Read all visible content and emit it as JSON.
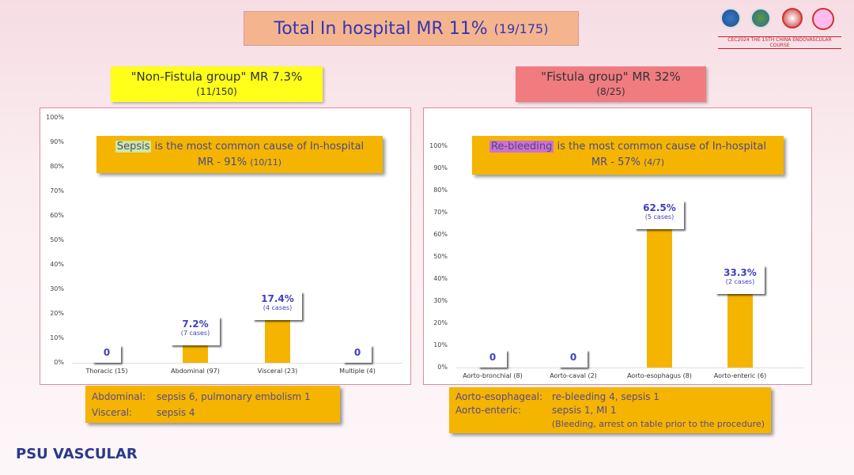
{
  "header": {
    "title": "Total In hospital MR 11%",
    "title_sub": "(19/175)",
    "conference": "CEC2024 THE 15TH CHINA ENDOVASCULAR COURSE"
  },
  "logo": {
    "text": "PSU VASCULAR"
  },
  "left": {
    "title": "\"Non-Fistula group\" MR 7.3%",
    "subtitle": "(11/150)",
    "callout_hl": "Sepsis",
    "callout_rest": " is the most common cause of In-hospital",
    "callout_line2": "MR - 91%",
    "callout_frac": "(10/11)",
    "notes": [
      {
        "k": "Abdominal:",
        "v": "sepsis 6, pulmonary  embolism 1"
      },
      {
        "k": "Visceral:",
        "v": "sepsis 4"
      }
    ]
  },
  "right": {
    "title": "\"Fistula group\" MR 32%",
    "subtitle": "(8/25)",
    "callout_hl": "Re-bleeding",
    "callout_rest": " is the most common cause of In-hospital",
    "callout_line2": "MR - 57%",
    "callout_frac": "(4/7)",
    "notes": [
      {
        "k": "Aorto-esophageal:",
        "v": "re-bleeding 4, sepsis 1"
      },
      {
        "k": "Aorto-enteric:",
        "v": "sepsis 1, MI 1"
      }
    ],
    "note_extra": "(Bleeding, arrest on table prior to the procedure)"
  },
  "chart_data": [
    {
      "type": "bar",
      "title": "Non-Fistula group",
      "categories": [
        "Thoracic (15)",
        "Abdominal (97)",
        "Visceral (23)",
        "Multiple (4)"
      ],
      "values": [
        0,
        7.2,
        17.4,
        0
      ],
      "labels": [
        "0",
        "7.2%",
        "17.4%",
        "0"
      ],
      "sublabels": [
        "",
        "(7 cases)",
        "(4 cases)",
        ""
      ],
      "ylim": [
        0,
        100
      ],
      "yticks": [
        "0%",
        "10%",
        "20%",
        "30%",
        "40%",
        "50%",
        "60%",
        "70%",
        "80%",
        "90%",
        "100%"
      ],
      "color": "#f4b400"
    },
    {
      "type": "bar",
      "title": "Fistula group",
      "categories": [
        "Aorto-bronchial (8)",
        "Aorto-caval (2)",
        "Aorto-esophagus (8)",
        "Aorto-enteric (6)"
      ],
      "values": [
        0,
        0,
        62.5,
        33.3
      ],
      "labels": [
        "0",
        "0",
        "62.5%",
        "33.3%"
      ],
      "sublabels": [
        "",
        "",
        "(5 cases)",
        "(2 cases)"
      ],
      "ylim": [
        0,
        100
      ],
      "yticks": [
        "0%",
        "10%",
        "20%",
        "30%",
        "40%",
        "50%",
        "60%",
        "70%",
        "80%",
        "90%",
        "100%"
      ],
      "color": "#f4b400"
    }
  ]
}
